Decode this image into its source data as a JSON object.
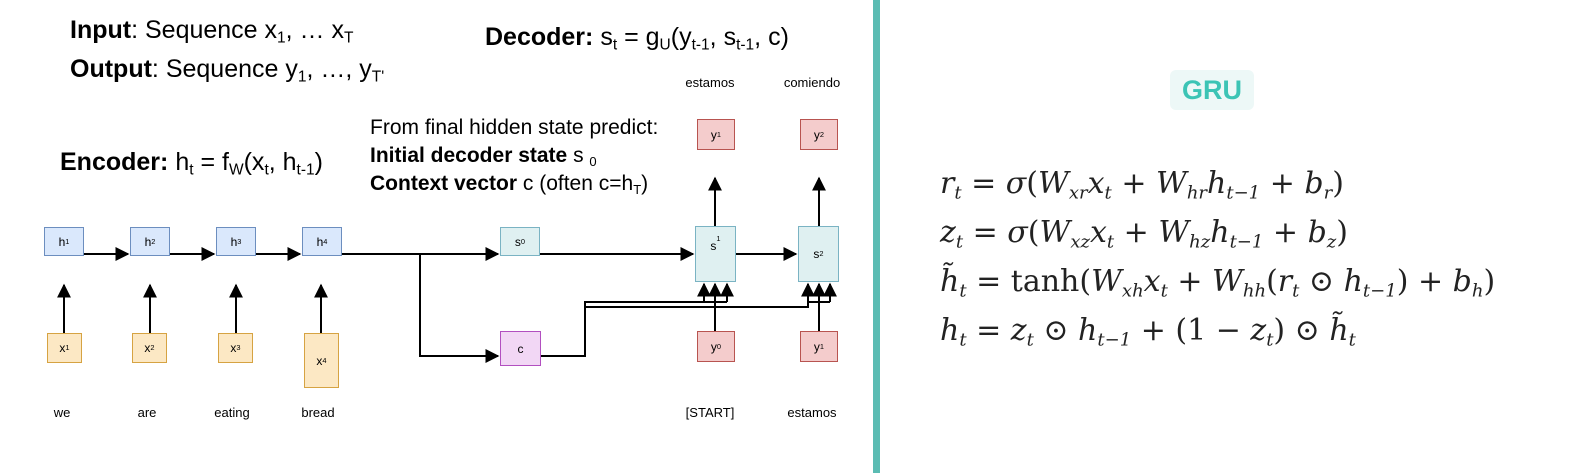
{
  "header": {
    "input_label": "Input",
    "input_text": ": Sequence x",
    "input_sub1": "1",
    "input_mid": ", … x",
    "input_sub2": "T",
    "output_label": "Output",
    "output_text": ": Sequence y",
    "output_sub1": "1",
    "output_mid": ", …, y",
    "output_sub2": "T'",
    "decoder_label": "Decoder:",
    "decoder_eq": "s",
    "encoder_label": "Encoder:",
    "encoder_eq": "h"
  },
  "prediction": {
    "line1": "From final hidden state predict:",
    "line2_bold": "Initial decoder state",
    "line2_rest": " s ",
    "line2_sub": "0",
    "line3_bold": "Context vector",
    "line3_rest": " c (often c=h",
    "line3_sub": "T",
    "line3_end": ")"
  },
  "encoder": {
    "hidden": [
      "h",
      "h",
      "h",
      "h"
    ],
    "hidden_subs": [
      "1",
      "2",
      "3",
      "4"
    ],
    "inputs": [
      "x",
      "x",
      "x",
      "x"
    ],
    "input_subs": [
      "1",
      "2",
      "3",
      "4"
    ],
    "words": [
      "we",
      "are",
      "eating",
      "bread"
    ]
  },
  "decoder": {
    "s0": "s",
    "s0_sub": "0",
    "context": "c",
    "states": [
      "s",
      "s"
    ],
    "state_subs": [
      "1",
      "2"
    ],
    "outputs": [
      "y",
      "y"
    ],
    "output_subs": [
      "1",
      "2"
    ],
    "inputs": [
      "y",
      "y"
    ],
    "input_subs": [
      "0",
      "1"
    ],
    "output_words": [
      "estamos",
      "comiendo"
    ],
    "input_words": [
      "[START]",
      "estamos"
    ]
  },
  "gru": {
    "title": "GRU",
    "equations": [
      "r_t = σ(W_xr x_t + W_hr h_{t-1} + b_r)",
      "z_t = σ(W_xz x_t + W_hz h_{t-1} + b_z)",
      "h̃_t = tanh(W_xh x_t + W_hh (r_t ⊙ h_{t-1}) + b_h)",
      "h_t = z_t ⊙ h_{t-1} + (1 − z_t) ⊙ h̃_t"
    ]
  },
  "colors": {
    "divider": "#5bbcb3",
    "gru_title": "#3cc4b5",
    "encoder_box": "#dae8fc",
    "input_box": "#fce8c4",
    "output_box": "#f4cccc",
    "context_box": "#f2d7f5"
  }
}
